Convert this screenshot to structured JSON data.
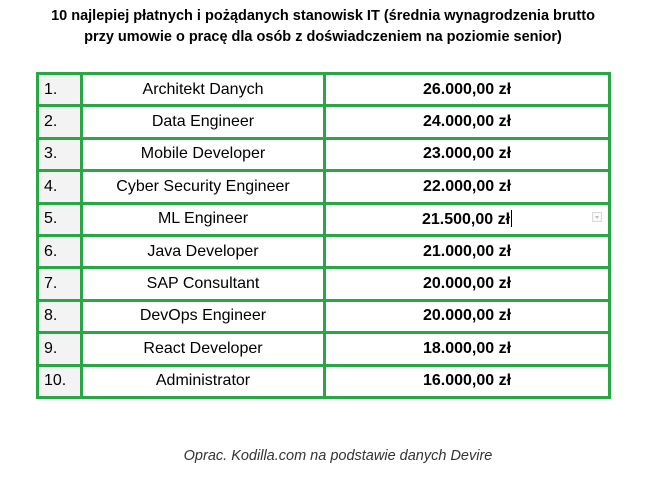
{
  "title": {
    "line1": "10 najlepiej płatnych i pożądanych stanowisk IT (średnia wynagrodzenia brutto",
    "line2": "przy umowie o pracę dla osób z doświadczeniem na poziomie senior)"
  },
  "table": {
    "rows": [
      {
        "num": "1.",
        "position": "Architekt Danych",
        "salary": "26.000,00 zł"
      },
      {
        "num": "2.",
        "position": "Data Engineer",
        "salary": "24.000,00 zł"
      },
      {
        "num": "3.",
        "position": "Mobile Developer",
        "salary": "23.000,00 zł"
      },
      {
        "num": "4.",
        "position": "Cyber Security Engineer",
        "salary": "22.000,00 zł"
      },
      {
        "num": "5.",
        "position": "ML Engineer",
        "salary": "21.500,00 zł"
      },
      {
        "num": "6.",
        "position": "Java Developer",
        "salary": "21.000,00 zł"
      },
      {
        "num": "7.",
        "position": "SAP Consultant",
        "salary": "20.000,00 zł"
      },
      {
        "num": "8.",
        "position": "DevOps Engineer",
        "salary": "20.000,00 zł"
      },
      {
        "num": "9.",
        "position": "React Developer",
        "salary": "18.000,00 zł"
      },
      {
        "num": "10.",
        "position": "Administrator",
        "salary": "16.000,00 zł"
      }
    ]
  },
  "source": "Oprac. Kodilla.com na podstawie danych Devire",
  "colors": {
    "border": "#2aa646",
    "number_cell_bg": "#f3f3f3"
  }
}
